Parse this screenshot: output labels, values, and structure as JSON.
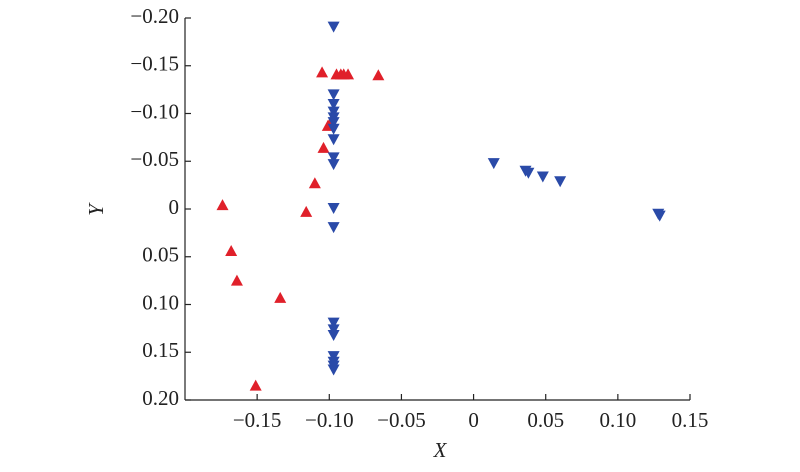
{
  "chart_data": {
    "type": "scatter",
    "xlabel": "X",
    "ylabel": "Y",
    "xlim": [
      -0.2,
      0.15
    ],
    "ylim": [
      -0.2,
      0.2
    ],
    "y_inverted": true,
    "xticks": [
      {
        "value": -0.15,
        "label": "−0.15"
      },
      {
        "value": -0.1,
        "label": "−0.10"
      },
      {
        "value": -0.05,
        "label": "−0.05"
      },
      0,
      0.05,
      {
        "value": 0.1,
        "label": "0.10"
      },
      0.15
    ],
    "yticks": [
      {
        "value": -0.2,
        "label": "−0.20"
      },
      {
        "value": -0.15,
        "label": "−0.15"
      },
      {
        "value": -0.1,
        "label": "−0.10"
      },
      {
        "value": -0.05,
        "label": "−0.05"
      },
      0,
      0.05,
      {
        "value": 0.1,
        "label": "0.10"
      },
      0.15,
      {
        "value": 0.2,
        "label": "0.20"
      }
    ],
    "series": [
      {
        "color": "#e0202a",
        "marker": "triangle-up",
        "x": [
          -0.174,
          -0.168,
          -0.164,
          -0.134,
          -0.151,
          -0.116,
          -0.11,
          -0.104,
          -0.101,
          -0.099,
          -0.105,
          -0.095,
          -0.092,
          -0.09,
          -0.087,
          -0.066
        ],
        "y": [
          -0.004,
          0.044,
          0.075,
          0.093,
          0.185,
          0.003,
          -0.027,
          -0.064,
          -0.087,
          -0.091,
          -0.143,
          -0.141,
          -0.141,
          -0.141,
          -0.141,
          -0.14
        ]
      },
      {
        "color": "#2a4aa8",
        "marker": "triangle-down",
        "x": [
          -0.097,
          -0.097,
          -0.097,
          -0.097,
          -0.097,
          -0.097,
          -0.097,
          -0.097,
          -0.097,
          -0.097,
          -0.097,
          -0.097,
          -0.097,
          -0.097,
          -0.097,
          -0.097,
          -0.097,
          -0.097,
          -0.097,
          0.014,
          0.036,
          0.038,
          0.048,
          0.06,
          0.128,
          0.129
        ],
        "y": [
          -0.191,
          -0.12,
          -0.11,
          -0.102,
          -0.096,
          -0.091,
          -0.084,
          -0.073,
          -0.054,
          -0.047,
          -0.001,
          0.019,
          0.119,
          0.126,
          0.132,
          0.154,
          0.16,
          0.164,
          0.168,
          -0.048,
          -0.04,
          -0.038,
          -0.034,
          -0.029,
          0.005,
          0.007
        ]
      }
    ]
  }
}
